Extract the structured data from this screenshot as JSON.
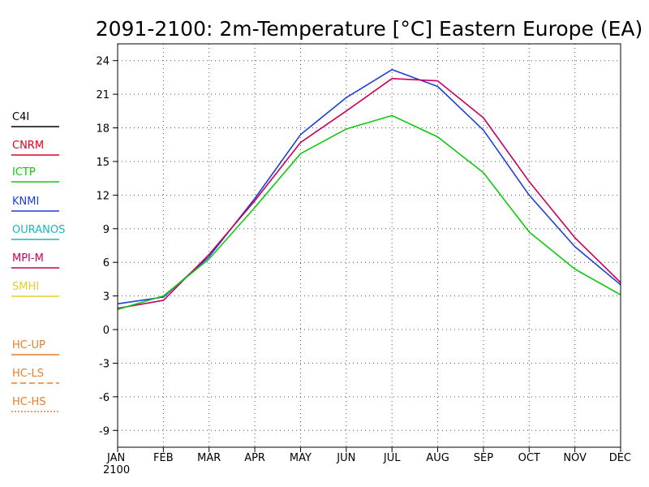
{
  "chart_data": {
    "type": "line",
    "title": "2091-2100: 2m-Temperature [°C] Eastern Europe (EA)",
    "xlabel": "",
    "ylabel": "",
    "categories": [
      "JAN",
      "FEB",
      "MAR",
      "APR",
      "MAY",
      "JUN",
      "JUL",
      "AUG",
      "SEP",
      "OCT",
      "NOV",
      "DEC"
    ],
    "x_sublabel": "2100",
    "ylim": [
      -10.5,
      25.5
    ],
    "yticks": [
      24,
      21,
      18,
      15,
      12,
      9,
      6,
      3,
      0,
      -3,
      -6,
      -9
    ],
    "grid": true,
    "legend_placement": "left",
    "legend": [
      {
        "name": "C4I",
        "color": "#000000",
        "style": "solid"
      },
      {
        "name": "CNRM",
        "color": "#e8001a",
        "style": "solid"
      },
      {
        "name": "ICTP",
        "color": "#10c810",
        "style": "solid"
      },
      {
        "name": "KNMI",
        "color": "#1f3fd8",
        "style": "solid"
      },
      {
        "name": "OURANOS",
        "color": "#18b8c0",
        "style": "solid"
      },
      {
        "name": "MPI-M",
        "color": "#c8005a",
        "style": "solid"
      },
      {
        "name": "SMHI",
        "color": "#e8d020",
        "style": "solid"
      },
      {
        "name": "HC-UP",
        "color": "#e87e28",
        "style": "solid"
      },
      {
        "name": "HC-LS",
        "color": "#e87e28",
        "style": "dashed"
      },
      {
        "name": "HC-HS",
        "color": "#e87e28",
        "style": "dotted"
      }
    ],
    "series": [
      {
        "name": "KNMI",
        "color": "#1f3fd8",
        "values": [
          2.3,
          2.9,
          6.5,
          11.7,
          17.4,
          20.7,
          23.2,
          21.7,
          17.8,
          12.0,
          7.4,
          4.0
        ]
      },
      {
        "name": "MPI-M",
        "color": "#c8005a",
        "values": [
          1.9,
          2.6,
          6.7,
          11.5,
          16.7,
          19.5,
          22.4,
          22.2,
          18.9,
          13.2,
          8.2,
          4.2
        ]
      },
      {
        "name": "ICTP",
        "color": "#10c810",
        "values": [
          1.8,
          3.0,
          6.3,
          10.9,
          15.7,
          17.9,
          19.1,
          17.2,
          14.0,
          8.7,
          5.4,
          3.1
        ]
      }
    ]
  }
}
